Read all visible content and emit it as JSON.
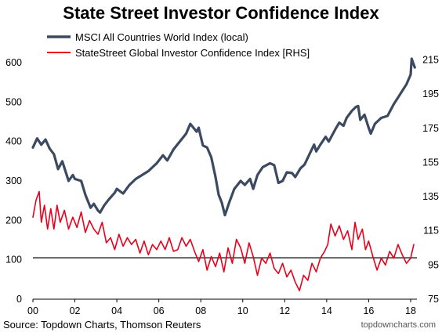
{
  "chart_data": {
    "type": "line",
    "title": "State Street Investor Confidence Index",
    "source": "Source: Topdown Charts, Thomson Reuters",
    "watermark": "topdowncharts.com",
    "colors": {
      "msci": "#3b4a60",
      "statestreet": "#e8001c",
      "reference": "#000000"
    },
    "x_range": [
      2000,
      2018.3
    ],
    "x_ticks": [
      {
        "value": 2000,
        "label": "00"
      },
      {
        "value": 2002,
        "label": "02"
      },
      {
        "value": 2004,
        "label": "04"
      },
      {
        "value": 2006,
        "label": "06"
      },
      {
        "value": 2008,
        "label": "08"
      },
      {
        "value": 2010,
        "label": "10"
      },
      {
        "value": 2012,
        "label": "12"
      },
      {
        "value": 2014,
        "label": "14"
      },
      {
        "value": 2016,
        "label": "16"
      },
      {
        "value": 2018,
        "label": "18"
      }
    ],
    "y_left": {
      "range": [
        0,
        620
      ],
      "ticks": [
        "0",
        "100",
        "200",
        "300",
        "400",
        "500",
        "600"
      ]
    },
    "y_right": {
      "range": [
        75,
        218
      ],
      "ticks": [
        "75",
        "95",
        "115",
        "135",
        "155",
        "175",
        "195",
        "215"
      ]
    },
    "reference_line": {
      "axis": "left",
      "value": 105
    },
    "series": [
      {
        "name": "MSCI All Countries World Index (local)",
        "axis": "left",
        "points": [
          [
            2000.0,
            385
          ],
          [
            2000.2,
            408
          ],
          [
            2000.4,
            392
          ],
          [
            2000.6,
            405
          ],
          [
            2000.8,
            382
          ],
          [
            2001.0,
            368
          ],
          [
            2001.2,
            330
          ],
          [
            2001.4,
            350
          ],
          [
            2001.7,
            300
          ],
          [
            2001.9,
            315
          ],
          [
            2002.0,
            305
          ],
          [
            2002.3,
            300
          ],
          [
            2002.5,
            265
          ],
          [
            2002.75,
            232
          ],
          [
            2002.9,
            242
          ],
          [
            2003.1,
            225
          ],
          [
            2003.2,
            220
          ],
          [
            2003.4,
            238
          ],
          [
            2003.6,
            252
          ],
          [
            2003.9,
            270
          ],
          [
            2004.0,
            280
          ],
          [
            2004.3,
            268
          ],
          [
            2004.6,
            290
          ],
          [
            2004.9,
            305
          ],
          [
            2005.2,
            315
          ],
          [
            2005.5,
            325
          ],
          [
            2005.9,
            345
          ],
          [
            2006.2,
            365
          ],
          [
            2006.4,
            352
          ],
          [
            2006.7,
            380
          ],
          [
            2007.0,
            400
          ],
          [
            2007.3,
            420
          ],
          [
            2007.5,
            445
          ],
          [
            2007.8,
            425
          ],
          [
            2007.9,
            435
          ],
          [
            2008.1,
            390
          ],
          [
            2008.3,
            385
          ],
          [
            2008.5,
            360
          ],
          [
            2008.7,
            310
          ],
          [
            2008.85,
            265
          ],
          [
            2009.0,
            245
          ],
          [
            2009.15,
            213
          ],
          [
            2009.35,
            245
          ],
          [
            2009.6,
            280
          ],
          [
            2009.9,
            300
          ],
          [
            2010.1,
            290
          ],
          [
            2010.35,
            305
          ],
          [
            2010.5,
            280
          ],
          [
            2010.7,
            315
          ],
          [
            2010.95,
            335
          ],
          [
            2011.3,
            345
          ],
          [
            2011.5,
            340
          ],
          [
            2011.7,
            295
          ],
          [
            2011.9,
            300
          ],
          [
            2012.1,
            322
          ],
          [
            2012.35,
            320
          ],
          [
            2012.5,
            310
          ],
          [
            2012.75,
            332
          ],
          [
            2012.95,
            342
          ],
          [
            2013.2,
            370
          ],
          [
            2013.4,
            392
          ],
          [
            2013.5,
            375
          ],
          [
            2013.7,
            392
          ],
          [
            2013.95,
            412
          ],
          [
            2014.1,
            400
          ],
          [
            2014.4,
            430
          ],
          [
            2014.6,
            448
          ],
          [
            2014.8,
            440
          ],
          [
            2014.95,
            460
          ],
          [
            2015.2,
            478
          ],
          [
            2015.4,
            488
          ],
          [
            2015.5,
            490
          ],
          [
            2015.6,
            455
          ],
          [
            2015.8,
            468
          ],
          [
            2016.0,
            435
          ],
          [
            2016.1,
            420
          ],
          [
            2016.3,
            445
          ],
          [
            2016.6,
            460
          ],
          [
            2016.9,
            465
          ],
          [
            2017.2,
            495
          ],
          [
            2017.5,
            520
          ],
          [
            2017.8,
            545
          ],
          [
            2018.0,
            570
          ],
          [
            2018.05,
            610
          ],
          [
            2018.15,
            595
          ],
          [
            2018.2,
            588
          ]
        ]
      },
      {
        "name": "StateStreet Global Investor Confidence Index [RHS]",
        "axis": "right",
        "points": [
          [
            2000.0,
            123
          ],
          [
            2000.15,
            133
          ],
          [
            2000.3,
            138
          ],
          [
            2000.4,
            120
          ],
          [
            2000.55,
            130
          ],
          [
            2000.7,
            116
          ],
          [
            2000.85,
            128
          ],
          [
            2001.0,
            116
          ],
          [
            2001.15,
            130
          ],
          [
            2001.3,
            120
          ],
          [
            2001.5,
            127
          ],
          [
            2001.7,
            116
          ],
          [
            2001.9,
            123
          ],
          [
            2002.1,
            117
          ],
          [
            2002.3,
            126
          ],
          [
            2002.5,
            114
          ],
          [
            2002.7,
            121
          ],
          [
            2002.9,
            116
          ],
          [
            2003.1,
            113
          ],
          [
            2003.3,
            120
          ],
          [
            2003.5,
            108
          ],
          [
            2003.7,
            111
          ],
          [
            2003.9,
            104
          ],
          [
            2004.1,
            113
          ],
          [
            2004.3,
            106
          ],
          [
            2004.5,
            111
          ],
          [
            2004.7,
            107
          ],
          [
            2004.9,
            110
          ],
          [
            2005.1,
            102
          ],
          [
            2005.3,
            109
          ],
          [
            2005.5,
            101
          ],
          [
            2005.7,
            107
          ],
          [
            2005.9,
            104
          ],
          [
            2006.1,
            109
          ],
          [
            2006.3,
            104
          ],
          [
            2006.5,
            111
          ],
          [
            2006.7,
            103
          ],
          [
            2006.9,
            104
          ],
          [
            2007.1,
            111
          ],
          [
            2007.3,
            106
          ],
          [
            2007.5,
            110
          ],
          [
            2007.7,
            103
          ],
          [
            2007.9,
            97
          ],
          [
            2008.1,
            104
          ],
          [
            2008.3,
            92
          ],
          [
            2008.5,
            100
          ],
          [
            2008.7,
            94
          ],
          [
            2008.9,
            102
          ],
          [
            2009.1,
            91
          ],
          [
            2009.3,
            105
          ],
          [
            2009.5,
            96
          ],
          [
            2009.7,
            110
          ],
          [
            2009.9,
            105
          ],
          [
            2010.1,
            96
          ],
          [
            2010.3,
            108
          ],
          [
            2010.5,
            100
          ],
          [
            2010.7,
            89
          ],
          [
            2010.9,
            99
          ],
          [
            2011.1,
            96
          ],
          [
            2011.3,
            102
          ],
          [
            2011.5,
            93
          ],
          [
            2011.7,
            90
          ],
          [
            2011.9,
            96
          ],
          [
            2012.1,
            88
          ],
          [
            2012.3,
            92
          ],
          [
            2012.5,
            85
          ],
          [
            2012.7,
            80
          ],
          [
            2012.9,
            89
          ],
          [
            2013.1,
            86
          ],
          [
            2013.3,
            96
          ],
          [
            2013.5,
            91
          ],
          [
            2013.7,
            99
          ],
          [
            2013.9,
            103
          ],
          [
            2014.05,
            107
          ],
          [
            2014.2,
            119
          ],
          [
            2014.4,
            112
          ],
          [
            2014.6,
            118
          ],
          [
            2014.8,
            110
          ],
          [
            2015.0,
            115
          ],
          [
            2015.2,
            104
          ],
          [
            2015.35,
            120
          ],
          [
            2015.5,
            110
          ],
          [
            2015.7,
            116
          ],
          [
            2015.85,
            104
          ],
          [
            2016.0,
            109
          ],
          [
            2016.2,
            100
          ],
          [
            2016.4,
            92
          ],
          [
            2016.6,
            99
          ],
          [
            2016.8,
            95
          ],
          [
            2017.0,
            103
          ],
          [
            2017.2,
            99
          ],
          [
            2017.4,
            107
          ],
          [
            2017.6,
            101
          ],
          [
            2017.8,
            96
          ],
          [
            2018.0,
            99
          ],
          [
            2018.15,
            107
          ]
        ]
      }
    ]
  }
}
